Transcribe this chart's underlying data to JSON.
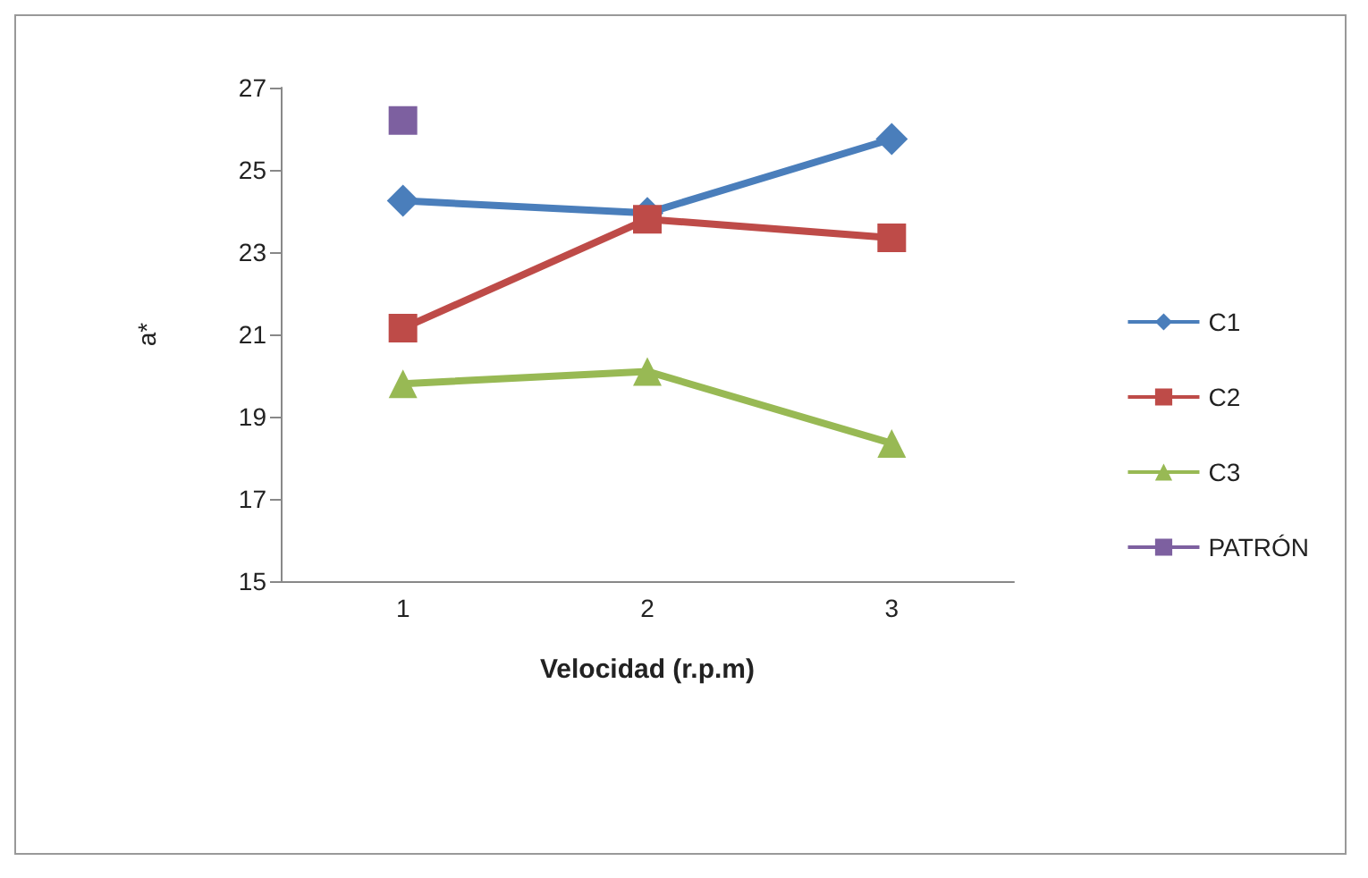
{
  "chart_data": {
    "type": "line",
    "xlabel": "Velocidad (r.p.m)",
    "ylabel": "a*",
    "categories": [
      "1",
      "2",
      "3"
    ],
    "series": [
      {
        "name": "C1",
        "color": "#4a7ebb",
        "marker": "diamond",
        "values": [
          24.25,
          23.95,
          25.75
        ]
      },
      {
        "name": "C2",
        "color": "#be4b48",
        "marker": "square",
        "values": [
          21.15,
          23.8,
          23.35
        ]
      },
      {
        "name": "C3",
        "color": "#98b954",
        "marker": "triangle",
        "values": [
          19.8,
          20.1,
          18.35
        ]
      },
      {
        "name": "PATRÓN",
        "color": "#7d60a0",
        "marker": "square",
        "values": [
          26.2,
          null,
          null
        ]
      }
    ],
    "ylim": [
      15,
      27
    ],
    "yticks": [
      15,
      17,
      19,
      21,
      23,
      25,
      27
    ],
    "grid": false,
    "legend": "right"
  }
}
